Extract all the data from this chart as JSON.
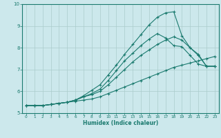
{
  "xlabel": "Humidex (Indice chaleur)",
  "bg_color": "#cce8ec",
  "grid_color": "#aacccc",
  "line_color": "#1a7a6e",
  "xlim": [
    -0.5,
    23.5
  ],
  "ylim": [
    5,
    10
  ],
  "yticks": [
    5,
    6,
    7,
    8,
    9,
    10
  ],
  "xticks": [
    0,
    1,
    2,
    3,
    4,
    5,
    6,
    7,
    8,
    9,
    10,
    11,
    12,
    13,
    14,
    15,
    16,
    17,
    18,
    19,
    20,
    21,
    22,
    23
  ],
  "line1_x": [
    0,
    1,
    2,
    3,
    4,
    5,
    6,
    7,
    8,
    9,
    10,
    11,
    12,
    13,
    14,
    15,
    16,
    17,
    18,
    19,
    20,
    21,
    22,
    23
  ],
  "line1_y": [
    5.35,
    5.35,
    5.35,
    5.4,
    5.45,
    5.5,
    5.55,
    5.6,
    5.65,
    5.75,
    5.9,
    6.05,
    6.2,
    6.35,
    6.5,
    6.65,
    6.8,
    6.95,
    7.1,
    7.2,
    7.3,
    7.4,
    7.5,
    7.6
  ],
  "line2_x": [
    0,
    1,
    2,
    3,
    4,
    5,
    6,
    7,
    8,
    9,
    10,
    11,
    12,
    13,
    14,
    15,
    16,
    17,
    18,
    19,
    20,
    21,
    22,
    23
  ],
  "line2_y": [
    5.35,
    5.35,
    5.35,
    5.4,
    5.45,
    5.5,
    5.6,
    5.75,
    5.85,
    6.0,
    6.3,
    6.65,
    7.0,
    7.35,
    7.65,
    7.9,
    8.15,
    8.35,
    8.5,
    8.35,
    8.0,
    7.65,
    7.15,
    7.15
  ],
  "line3_x": [
    0,
    1,
    2,
    3,
    4,
    5,
    6,
    7,
    8,
    9,
    10,
    11,
    12,
    13,
    14,
    15,
    16,
    17,
    18,
    19,
    20,
    21,
    22,
    23
  ],
  "line3_y": [
    5.35,
    5.35,
    5.35,
    5.4,
    5.45,
    5.5,
    5.6,
    5.75,
    5.9,
    6.1,
    6.5,
    6.95,
    7.4,
    7.75,
    8.1,
    8.4,
    8.65,
    8.45,
    8.1,
    8.05,
    7.65,
    7.25,
    7.15,
    7.15
  ],
  "line4_x": [
    0,
    1,
    2,
    3,
    4,
    5,
    6,
    7,
    8,
    9,
    10,
    11,
    12,
    13,
    14,
    15,
    16,
    17,
    18,
    19,
    20,
    21,
    22,
    23
  ],
  "line4_y": [
    5.35,
    5.35,
    5.35,
    5.4,
    5.45,
    5.5,
    5.6,
    5.8,
    6.05,
    6.3,
    6.75,
    7.2,
    7.7,
    8.15,
    8.6,
    9.05,
    9.4,
    9.6,
    9.65,
    8.55,
    8.0,
    7.7,
    7.15,
    7.15
  ]
}
